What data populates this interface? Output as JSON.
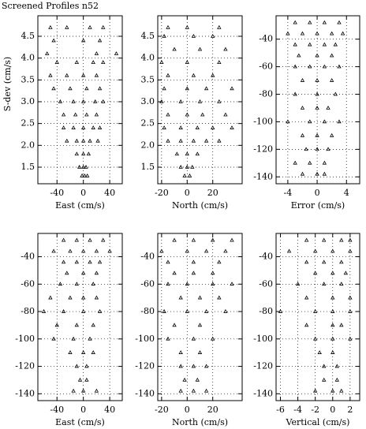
{
  "title": "Screened Profiles n52",
  "chart_data": [
    {
      "type": "scatter",
      "xlabel": "East (cm/s)",
      "ylabel": "S-dev (cm/s)",
      "color": "#000000",
      "grid": true,
      "xlim": [
        -69,
        59
      ],
      "ylim": [
        1.12,
        4.97
      ],
      "xticks": [
        -40,
        0,
        40
      ],
      "yticks": [
        1.5,
        {
          "value": 2,
          "label": "2.0"
        },
        2.5,
        {
          "value": 3,
          "label": "3.0"
        },
        3.5,
        {
          "value": 4,
          "label": "4.0"
        },
        4.5
      ],
      "x": [
        -2,
        2,
        6,
        -6,
        0,
        4,
        -10,
        0,
        8,
        -25,
        -10,
        0,
        10,
        22,
        -30,
        -15,
        0,
        15,
        25,
        -30,
        -12,
        5,
        20,
        -35,
        -15,
        0,
        18,
        30,
        -45,
        -20,
        5,
        25,
        -50,
        -25,
        0,
        20,
        -40,
        -10,
        15,
        30,
        -55,
        20,
        50,
        -45,
        0,
        25,
        -50,
        -25,
        10,
        30
      ],
      "y": [
        1.3,
        1.3,
        1.3,
        1.5,
        1.5,
        1.5,
        1.8,
        1.8,
        1.8,
        2.1,
        2.1,
        2.1,
        2.1,
        2.1,
        2.4,
        2.4,
        2.4,
        2.4,
        2.4,
        2.7,
        2.7,
        2.7,
        2.7,
        3.0,
        3.0,
        3.0,
        3.0,
        3.0,
        3.3,
        3.3,
        3.3,
        3.3,
        3.6,
        3.6,
        3.6,
        3.6,
        3.9,
        3.9,
        3.9,
        3.9,
        4.1,
        4.1,
        4.1,
        4.4,
        4.4,
        4.4,
        4.7,
        4.7,
        4.7,
        4.7
      ]
    },
    {
      "type": "scatter",
      "xlabel": "North (cm/s)",
      "color": "#000000",
      "grid": true,
      "xlim": [
        -23,
        43
      ],
      "ylim": [
        1.12,
        4.97
      ],
      "xticks": [
        -20,
        0,
        20
      ],
      "yticks": [
        1.5,
        {
          "value": 2,
          "label": "2.0"
        },
        2.5,
        {
          "value": 3,
          "label": "3.0"
        },
        3.5,
        {
          "value": 4,
          "label": "4.0"
        },
        4.5
      ],
      "x": [
        -2,
        2,
        -5,
        0,
        4,
        -8,
        0,
        8,
        -15,
        -5,
        5,
        15,
        25,
        -18,
        -5,
        8,
        20,
        35,
        -15,
        0,
        12,
        30,
        -20,
        -5,
        10,
        25,
        -18,
        0,
        15,
        35,
        -15,
        5,
        20,
        -20,
        0,
        25,
        -10,
        10,
        30,
        -18,
        5,
        20,
        -15,
        0,
        25
      ],
      "y": [
        1.3,
        1.3,
        1.5,
        1.5,
        1.5,
        1.8,
        1.8,
        1.8,
        2.1,
        2.1,
        2.1,
        2.1,
        2.1,
        2.4,
        2.4,
        2.4,
        2.4,
        2.4,
        2.7,
        2.7,
        2.7,
        2.7,
        3.0,
        3.0,
        3.0,
        3.0,
        3.3,
        3.3,
        3.3,
        3.3,
        3.6,
        3.6,
        3.6,
        3.9,
        3.9,
        3.9,
        4.2,
        4.2,
        4.2,
        4.5,
        4.5,
        4.5,
        4.7,
        4.7,
        4.7
      ]
    },
    {
      "type": "scatter",
      "xlabel": "Error (cm/s)",
      "color": "#000000",
      "grid": true,
      "xlim": [
        -5.6,
        5.8
      ],
      "ylim": [
        -145,
        -23
      ],
      "xticks": [
        -4,
        0,
        4
      ],
      "yticks": [
        -40,
        -60,
        -80,
        -100,
        -120,
        -140
      ],
      "x": [
        -3,
        -1,
        1,
        3,
        -4,
        -2,
        0,
        2,
        3.5,
        -3,
        -1,
        1,
        2.5,
        -2.5,
        0,
        2,
        -3,
        -1,
        1,
        3,
        -2,
        0,
        2,
        -3,
        0,
        2.5,
        -2,
        0,
        1.5,
        -4,
        -1,
        1,
        3,
        -2,
        0,
        2,
        -1.5,
        0,
        1.5,
        -3,
        -1,
        1,
        -2,
        0,
        1
      ],
      "y": [
        -28,
        -28,
        -28,
        -28,
        -36,
        -36,
        -36,
        -36,
        -36,
        -44,
        -44,
        -44,
        -44,
        -52,
        -52,
        -52,
        -60,
        -60,
        -60,
        -60,
        -70,
        -70,
        -70,
        -80,
        -80,
        -80,
        -90,
        -90,
        -90,
        -100,
        -100,
        -100,
        -100,
        -110,
        -110,
        -110,
        -120,
        -120,
        -120,
        -130,
        -130,
        -130,
        -138,
        -138,
        -138
      ]
    },
    {
      "type": "scatter",
      "xlabel": "East (cm/s)",
      "color": "#000000",
      "grid": true,
      "xlim": [
        -69,
        59
      ],
      "ylim": [
        -145,
        -23
      ],
      "xticks": [
        -40,
        0,
        40
      ],
      "yticks": [
        -40,
        -60,
        -80,
        -100,
        -120,
        -140
      ],
      "x": [
        -30,
        -10,
        10,
        30,
        -45,
        -20,
        0,
        20,
        40,
        -30,
        -10,
        10,
        25,
        -25,
        0,
        20,
        -35,
        -10,
        15,
        -50,
        -20,
        0,
        20,
        -60,
        -30,
        0,
        25,
        -40,
        -10,
        15,
        -45,
        -15,
        10,
        -20,
        0,
        15,
        -10,
        5,
        -5,
        5,
        -15,
        0,
        20
      ],
      "y": [
        -28,
        -28,
        -28,
        -28,
        -36,
        -36,
        -36,
        -36,
        -36,
        -44,
        -44,
        -44,
        -44,
        -52,
        -52,
        -52,
        -60,
        -60,
        -60,
        -70,
        -70,
        -70,
        -70,
        -80,
        -80,
        -80,
        -80,
        -90,
        -90,
        -90,
        -100,
        -100,
        -100,
        -110,
        -110,
        -110,
        -120,
        -120,
        -130,
        -130,
        -138,
        -138,
        -138
      ]
    },
    {
      "type": "scatter",
      "xlabel": "North (cm/s)",
      "color": "#000000",
      "grid": true,
      "xlim": [
        -23,
        43
      ],
      "ylim": [
        -145,
        -23
      ],
      "xticks": [
        -20,
        0,
        20
      ],
      "yticks": [
        -40,
        -60,
        -80,
        -100,
        -120,
        -140
      ],
      "x": [
        -10,
        5,
        20,
        35,
        -20,
        0,
        15,
        30,
        -15,
        5,
        25,
        -10,
        5,
        20,
        -15,
        0,
        20,
        35,
        -5,
        10,
        25,
        -18,
        0,
        15,
        30,
        -10,
        10,
        -15,
        5,
        20,
        -5,
        10,
        -5,
        5,
        15,
        -2,
        8,
        -5,
        5,
        15
      ],
      "y": [
        -28,
        -28,
        -28,
        -28,
        -36,
        -36,
        -36,
        -36,
        -44,
        -44,
        -44,
        -52,
        -52,
        -52,
        -60,
        -60,
        -60,
        -60,
        -70,
        -70,
        -70,
        -80,
        -80,
        -80,
        -80,
        -90,
        -90,
        -100,
        -100,
        -100,
        -110,
        -110,
        -120,
        -120,
        -120,
        -130,
        -130,
        -138,
        -138,
        -138
      ]
    },
    {
      "type": "scatter",
      "xlabel": "Vertical (cm/s)",
      "color": "#000000",
      "grid": true,
      "xlim": [
        -6.5,
        3.1
      ],
      "ylim": [
        -145,
        -23
      ],
      "xticks": [
        -6,
        -4,
        -2,
        0,
        2
      ],
      "yticks": [
        -40,
        -60,
        -80,
        -100,
        -120,
        -140
      ],
      "x": [
        -3,
        -1,
        1,
        2,
        -5,
        -2,
        0,
        2,
        -3,
        -1,
        1,
        -2,
        0,
        1.5,
        -4,
        -1,
        1,
        -3,
        0,
        2,
        -6,
        -2,
        0,
        2,
        -3,
        0,
        1,
        -2,
        0,
        2,
        -1.5,
        0,
        -1,
        0.5,
        -1,
        0.5,
        -2,
        0,
        1
      ],
      "y": [
        -28,
        -28,
        -28,
        -28,
        -36,
        -36,
        -36,
        -36,
        -44,
        -44,
        -44,
        -52,
        -52,
        -52,
        -60,
        -60,
        -60,
        -70,
        -70,
        -70,
        -80,
        -80,
        -80,
        -80,
        -90,
        -90,
        -90,
        -100,
        -100,
        -100,
        -110,
        -110,
        -120,
        -120,
        -130,
        -130,
        -138,
        -138,
        -138
      ]
    }
  ]
}
